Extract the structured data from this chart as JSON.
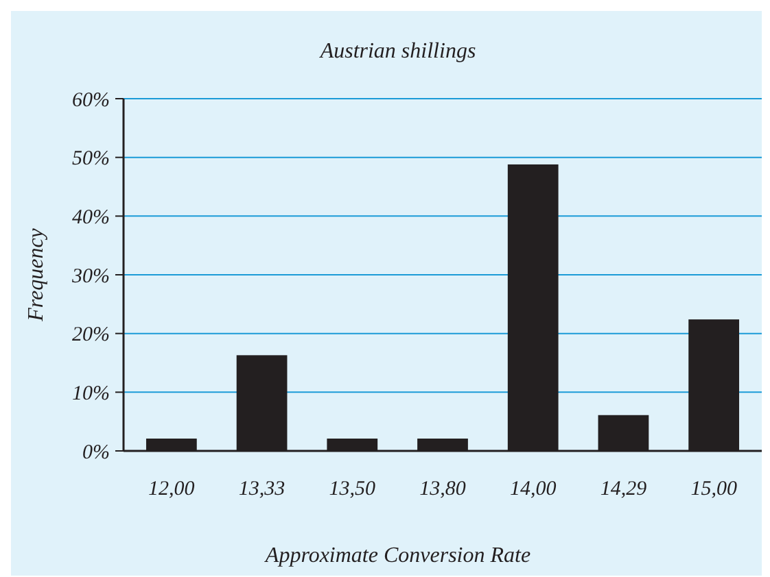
{
  "chart_data": {
    "type": "bar",
    "title": "Austrian shillings",
    "xlabel": "Approximate Conversion Rate",
    "ylabel": "Frequency",
    "categories": [
      "12,00",
      "13,33",
      "13,50",
      "13,80",
      "14,00",
      "14,29",
      "15,00"
    ],
    "values": [
      2.1,
      16.3,
      2.1,
      2.1,
      48.8,
      6.1,
      22.4
    ],
    "color": "#231f20",
    "ylim": [
      0,
      60
    ],
    "yticks": [
      {
        "value": 0,
        "label": "0%"
      },
      {
        "value": 10,
        "label": "10%"
      },
      {
        "value": 20,
        "label": "20%"
      },
      {
        "value": 30,
        "label": "30%"
      },
      {
        "value": 40,
        "label": "40%"
      },
      {
        "value": 50,
        "label": "50%"
      },
      {
        "value": 60,
        "label": "60%"
      }
    ],
    "grid": "y"
  }
}
